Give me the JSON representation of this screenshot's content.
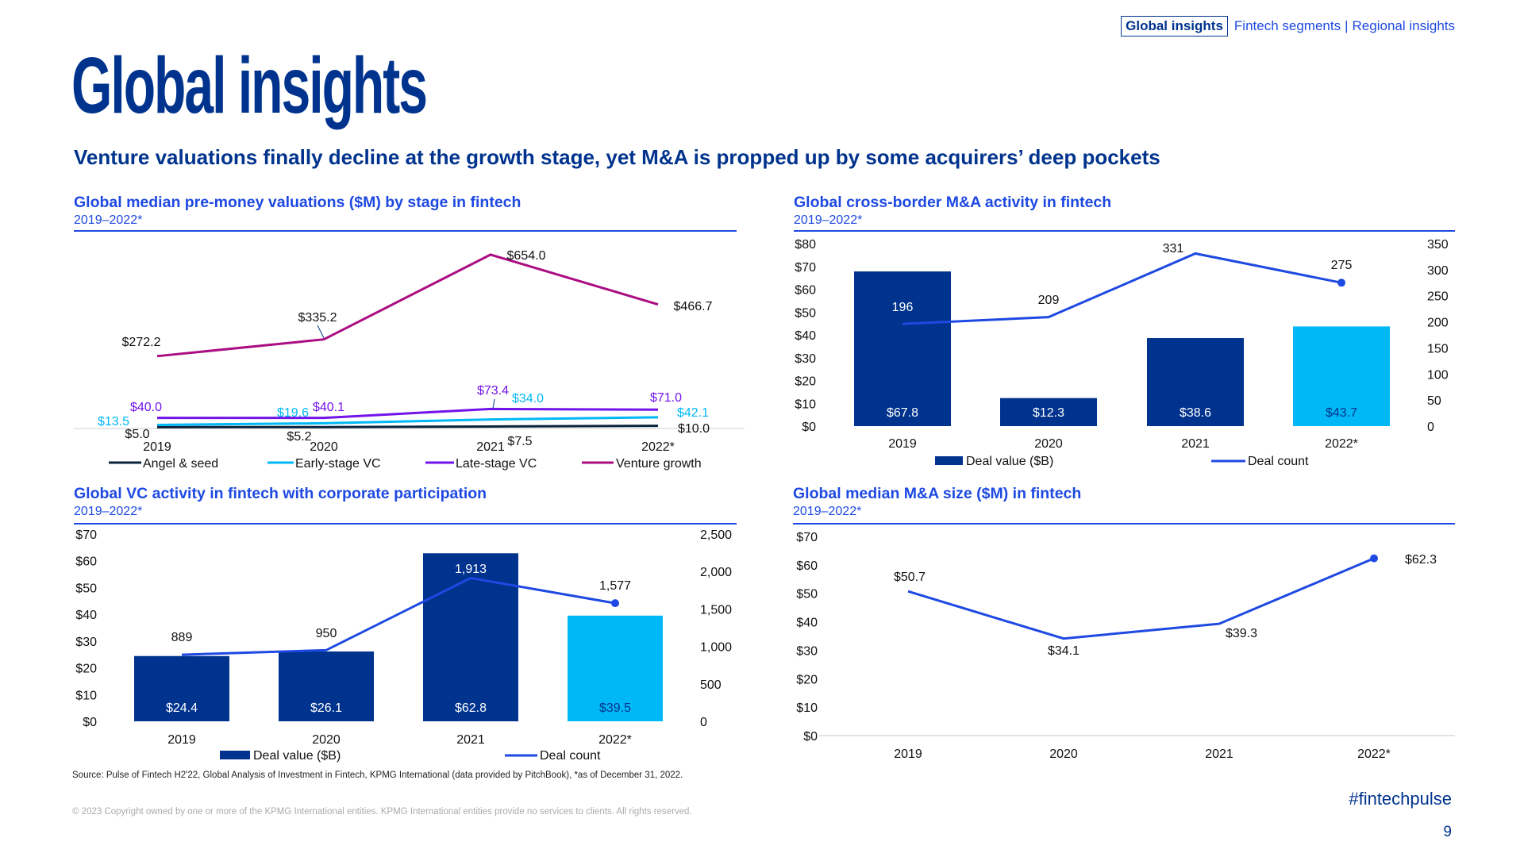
{
  "nav": {
    "active": "Global insights",
    "links": [
      "Fintech segments",
      "Regional insights"
    ],
    "separator": "|"
  },
  "title": "Global insights",
  "headline": "Venture valuations finally decline at the growth stage, yet M&A is propped up by some acquirers’ deep pockets",
  "source": "Source: Pulse of Fintech H2'22, Global Analysis of Investment in Fintech, KPMG International (data provided by PitchBook), *as of December 31, 2022.",
  "copyright": "© 2023 Copyright owned by one or more of the KPMG International entities. KPMG International entities provide no services to clients. All rights reserved.",
  "hashtag": "#fintechpulse",
  "page_number": "9",
  "colors": {
    "dark_blue": "#00338D",
    "blue": "#1E49E2",
    "light_blue": "#00B8F5",
    "magenta": "#AB0D82",
    "purple": "#7213EA",
    "navy": "#0C233C"
  },
  "chart_data": [
    {
      "type": "line",
      "title": "Global median pre-money valuations ($M) by stage in fintech",
      "subtitle": "2019–2022*",
      "categories": [
        "2019",
        "2020",
        "2021",
        "2022*"
      ],
      "series": [
        {
          "name": "Angel & seed",
          "color": "#0C233C",
          "values": [
            5.0,
            5.2,
            7.5,
            10.0
          ],
          "labels": [
            "$5.0",
            "$5.2",
            "$7.5",
            "$10.0"
          ]
        },
        {
          "name": "Early-stage VC",
          "color": "#00B8F5",
          "values": [
            13.5,
            19.6,
            34.0,
            42.1
          ],
          "labels": [
            "$13.5",
            "$19.6",
            "$34.0",
            "$42.1"
          ]
        },
        {
          "name": "Late-stage VC",
          "color": "#7213EA",
          "values": [
            40.0,
            40.1,
            73.4,
            71.0
          ],
          "labels": [
            "$40.0",
            "$40.1",
            "$73.4",
            "$71.0"
          ]
        },
        {
          "name": "Venture growth",
          "color": "#AB0D82",
          "values": [
            272.2,
            335.2,
            654.0,
            466.7
          ],
          "labels": [
            "$272.2",
            "$335.2",
            "$654.0",
            "$466.7"
          ]
        }
      ],
      "legend": "bottom",
      "grid": false
    },
    {
      "type": "bar+line",
      "title": "Global cross-border M&A activity in fintech",
      "subtitle": "2019–2022*",
      "categories": [
        "2019",
        "2020",
        "2021",
        "2022*"
      ],
      "bars": {
        "name": "Deal value ($B)",
        "values": [
          67.8,
          12.3,
          38.6,
          43.7
        ],
        "labels": [
          "$67.8",
          "$12.3",
          "$38.6",
          "$43.7"
        ]
      },
      "line": {
        "name": "Deal count",
        "values": [
          196,
          209,
          331,
          275
        ],
        "labels": [
          "196",
          "209",
          "331",
          "275"
        ]
      },
      "ylim_left": [
        0,
        80
      ],
      "yticks_left": [
        "$0",
        "$10",
        "$20",
        "$30",
        "$40",
        "$50",
        "$60",
        "$70",
        "$80"
      ],
      "ylim_right": [
        0,
        350
      ],
      "yticks_right": [
        "0",
        "50",
        "100",
        "150",
        "200",
        "250",
        "300",
        "350"
      ],
      "legend": "bottom",
      "grid": false
    },
    {
      "type": "bar+line",
      "title": "Global VC activity in fintech with corporate participation",
      "subtitle": "2019–2022*",
      "categories": [
        "2019",
        "2020",
        "2021",
        "2022*"
      ],
      "bars": {
        "name": "Deal value ($B)",
        "values": [
          24.4,
          26.1,
          62.8,
          39.5
        ],
        "labels": [
          "$24.4",
          "$26.1",
          "$62.8",
          "$39.5"
        ]
      },
      "line": {
        "name": "Deal count",
        "values": [
          889,
          950,
          1913,
          1577
        ],
        "labels": [
          "889",
          "950",
          "1,913",
          "1,577"
        ]
      },
      "ylim_left": [
        0,
        70
      ],
      "yticks_left": [
        "$0",
        "$10",
        "$20",
        "$30",
        "$40",
        "$50",
        "$60",
        "$70"
      ],
      "ylim_right": [
        0,
        2500
      ],
      "yticks_right": [
        "0",
        "500",
        "1,000",
        "1,500",
        "2,000",
        "2,500"
      ],
      "legend": "bottom",
      "grid": false
    },
    {
      "type": "line",
      "title": "Global median M&A size ($M) in fintech",
      "subtitle": "2019–2022*",
      "categories": [
        "2019",
        "2020",
        "2021",
        "2022*"
      ],
      "series": [
        {
          "color": "#1E49E2",
          "values": [
            50.7,
            34.1,
            39.3,
            62.3
          ],
          "labels": [
            "$50.7",
            "$34.1",
            "$39.3",
            "$62.3"
          ]
        }
      ],
      "ylim": [
        0,
        70
      ],
      "yticks": [
        "$0",
        "$10",
        "$20",
        "$30",
        "$40",
        "$50",
        "$60",
        "$70"
      ],
      "grid": false
    }
  ]
}
